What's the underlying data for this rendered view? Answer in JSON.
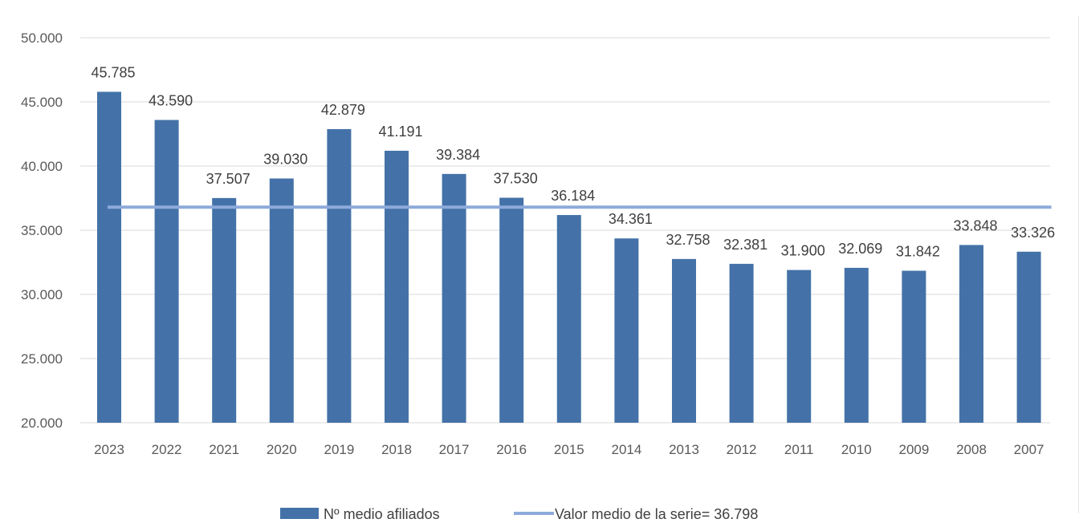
{
  "chart_data": {
    "type": "bar",
    "categories": [
      "2023",
      "2022",
      "2021",
      "2020",
      "2019",
      "2018",
      "2017",
      "2016",
      "2015",
      "2014",
      "2013",
      "2012",
      "2011",
      "2010",
      "2009",
      "2008",
      "2007"
    ],
    "series": [
      {
        "name": "Nº medio afiliados",
        "values": [
          45785,
          43590,
          37507,
          39030,
          42879,
          41191,
          39384,
          37530,
          36184,
          34361,
          32758,
          32381,
          31900,
          32069,
          31842,
          33848,
          33326
        ],
        "labels": [
          "45.785",
          "43.590",
          "37.507",
          "39.030",
          "42.879",
          "41.191",
          "39.384",
          "37.530",
          "36.184",
          "34.361",
          "32.758",
          "32.381",
          "31.900",
          "32.069",
          "31.842",
          "33.848",
          "33.326"
        ],
        "color": "#4472a8"
      }
    ],
    "reference_line": {
      "name": "Valor medio de la serie= 36.798",
      "value": 36798,
      "color": "#8eaadb"
    },
    "ylim": [
      20000,
      50000
    ],
    "yticks": [
      20000,
      25000,
      30000,
      35000,
      40000,
      45000,
      50000
    ],
    "ytick_labels": [
      "20.000",
      "25.000",
      "30.000",
      "35.000",
      "40.000",
      "45.000",
      "50.000"
    ],
    "grid": true,
    "grid_color": "#d9d9d9",
    "legend_position": "bottom"
  }
}
